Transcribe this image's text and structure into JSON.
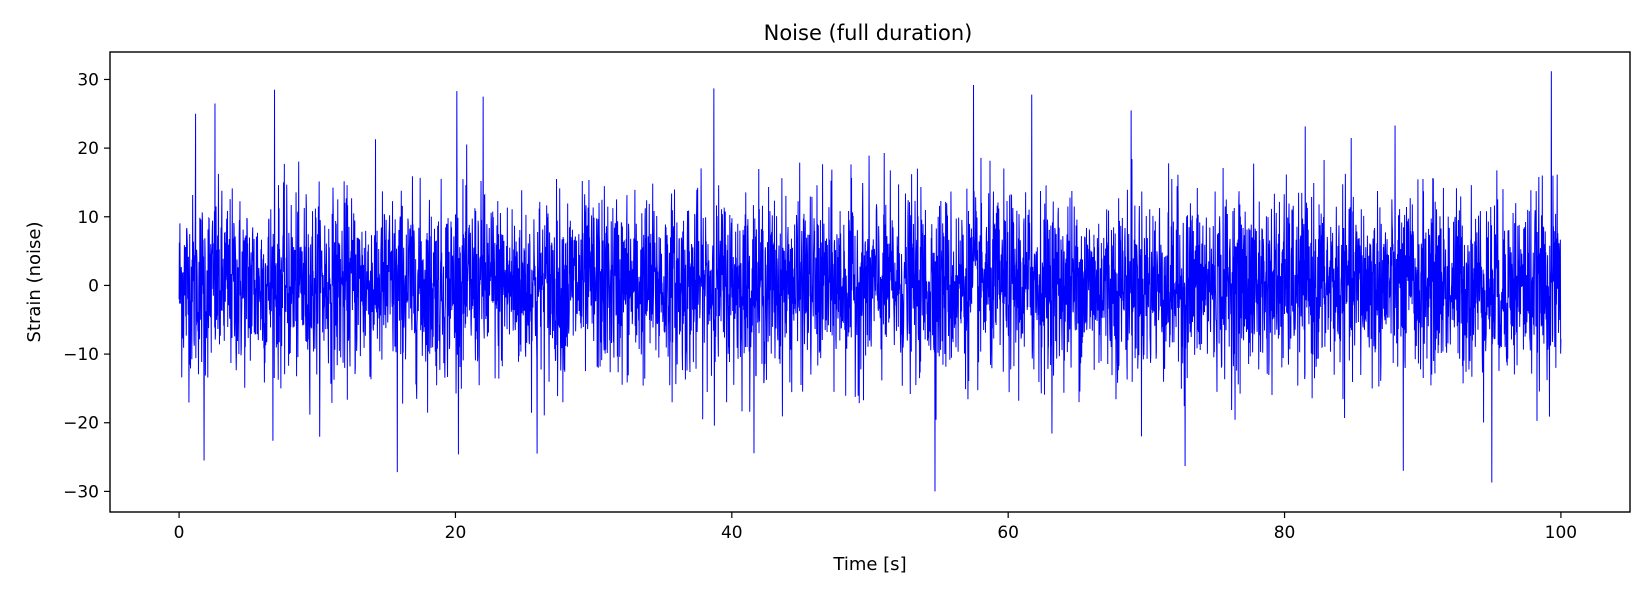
{
  "chart_data": {
    "type": "line",
    "title": "Noise (full duration)",
    "xlabel": "Time [s]",
    "ylabel": "Strain (noise)",
    "xlim": [
      -5,
      105
    ],
    "ylim": [
      -33,
      34
    ],
    "x_ticks": [
      0,
      20,
      40,
      60,
      80,
      100
    ],
    "x_tick_labels": [
      "0",
      "20",
      "40",
      "60",
      "80",
      "100"
    ],
    "y_ticks": [
      -30,
      -20,
      -10,
      0,
      10,
      20,
      30
    ],
    "y_tick_labels": [
      "−30",
      "−20",
      "−10",
      "0",
      "10",
      "20",
      "30"
    ],
    "grid": false,
    "legend": "none",
    "series": [
      {
        "color": "#0000ff",
        "x_start": 0,
        "x_end": 100,
        "noise_std": 6.5,
        "noise_min": -30,
        "noise_max": 31.2,
        "peaks": [
          {
            "x": 1.2,
            "y": 25
          },
          {
            "x": 2.6,
            "y": 26.5
          },
          {
            "x": 6.9,
            "y": 28.5
          },
          {
            "x": 20.1,
            "y": 28.3
          },
          {
            "x": 22.0,
            "y": 27.5
          },
          {
            "x": 38.7,
            "y": 28.7
          },
          {
            "x": 57.5,
            "y": 29.2
          },
          {
            "x": 61.7,
            "y": 27.8
          },
          {
            "x": 68.9,
            "y": 25.5
          },
          {
            "x": 99.3,
            "y": 31.2
          },
          {
            "x": 1.8,
            "y": -25.5
          },
          {
            "x": 15.8,
            "y": -27.2
          },
          {
            "x": 25.9,
            "y": -24.5
          },
          {
            "x": 54.7,
            "y": -30.0
          },
          {
            "x": 72.8,
            "y": -26.3
          },
          {
            "x": 88.6,
            "y": -27.0
          },
          {
            "x": 95.0,
            "y": -28.7
          }
        ]
      }
    ]
  }
}
